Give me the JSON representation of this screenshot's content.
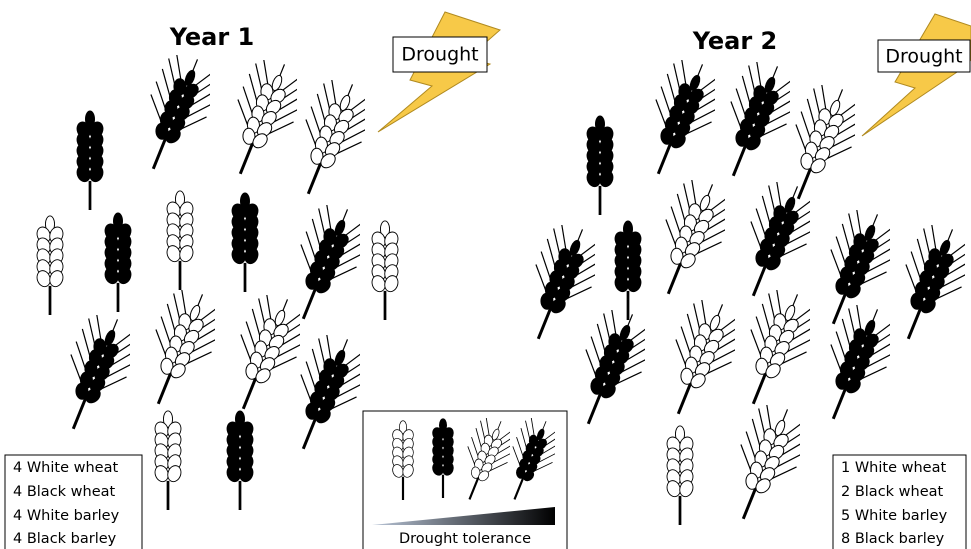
{
  "year1": {
    "title": "Year 1",
    "event": "Drought",
    "counts": [
      "4 White wheat",
      "4 Black wheat",
      "4 White barley",
      "4 Black barley"
    ]
  },
  "year2": {
    "title": "Year 2",
    "event": "Drought",
    "counts": [
      "1 White wheat",
      "2 Black wheat",
      "5 White barley",
      "8 Black barley"
    ]
  },
  "key": {
    "label": "Drought tolerance"
  }
}
